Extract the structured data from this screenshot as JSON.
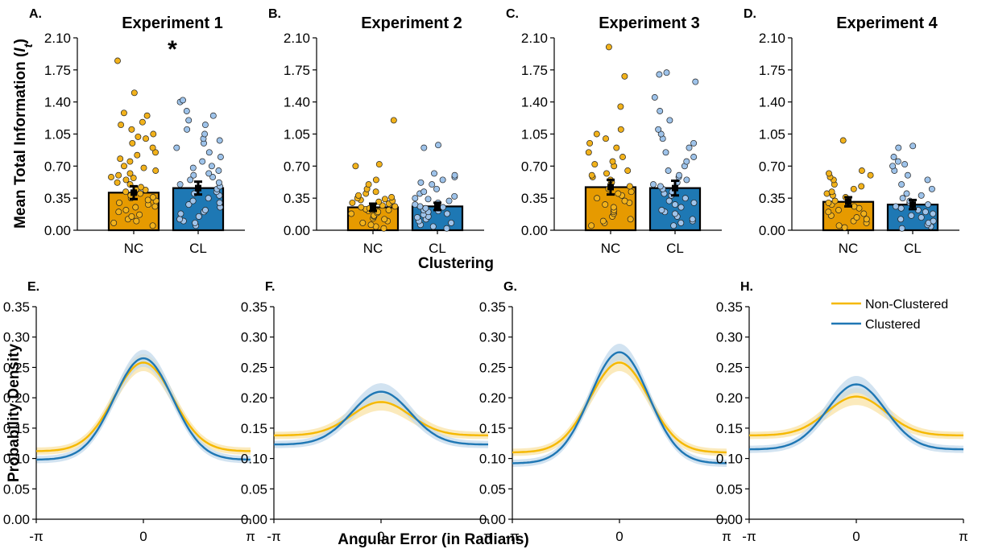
{
  "chart_data": [
    {
      "panel": "A.",
      "title": "Experiment 1",
      "type": "bar",
      "categories": [
        "NC",
        "CL"
      ],
      "values": [
        0.41,
        0.46
      ],
      "errors": [
        0.07,
        0.07
      ],
      "significance": "*",
      "ylim": [
        0,
        2.1
      ],
      "yticks": [
        "0.00",
        "0.35",
        "0.70",
        "1.05",
        "1.40",
        "1.75",
        "2.10"
      ],
      "points": {
        "NC": [
          0.05,
          0.08,
          0.1,
          0.12,
          0.15,
          0.17,
          0.2,
          0.22,
          0.25,
          0.26,
          0.28,
          0.3,
          0.32,
          0.33,
          0.35,
          0.36,
          0.38,
          0.4,
          0.42,
          0.44,
          0.45,
          0.47,
          0.5,
          0.52,
          0.55,
          0.57,
          0.58,
          0.6,
          0.62,
          0.65,
          0.68,
          0.7,
          0.75,
          0.78,
          0.82,
          0.85,
          0.9,
          0.95,
          1.0,
          1.02,
          1.05,
          1.1,
          1.15,
          1.18,
          1.25,
          1.28,
          1.5,
          1.85
        ],
        "CL": [
          0.05,
          0.08,
          0.1,
          0.12,
          0.15,
          0.18,
          0.2,
          0.22,
          0.25,
          0.28,
          0.3,
          0.32,
          0.35,
          0.38,
          0.4,
          0.42,
          0.45,
          0.48,
          0.5,
          0.52,
          0.55,
          0.58,
          0.6,
          0.62,
          0.65,
          0.68,
          0.7,
          0.75,
          0.8,
          0.85,
          0.9,
          0.95,
          0.98,
          1.0,
          1.05,
          1.1,
          1.15,
          1.2,
          1.25,
          1.3,
          1.4,
          1.42
        ]
      }
    },
    {
      "panel": "B.",
      "title": "Experiment 2",
      "type": "bar",
      "categories": [
        "NC",
        "CL"
      ],
      "values": [
        0.25,
        0.26
      ],
      "errors": [
        0.04,
        0.04
      ],
      "ylim": [
        0,
        2.1
      ],
      "yticks": [
        "0.00",
        "0.35",
        "0.70",
        "1.05",
        "1.40",
        "1.75",
        "2.10"
      ],
      "points": {
        "NC": [
          0.02,
          0.04,
          0.06,
          0.08,
          0.1,
          0.12,
          0.13,
          0.15,
          0.16,
          0.18,
          0.19,
          0.2,
          0.21,
          0.22,
          0.23,
          0.24,
          0.25,
          0.26,
          0.27,
          0.28,
          0.29,
          0.3,
          0.31,
          0.32,
          0.33,
          0.34,
          0.35,
          0.36,
          0.38,
          0.4,
          0.42,
          0.45,
          0.5,
          0.55,
          0.7,
          0.72,
          1.2
        ],
        "CL": [
          0.02,
          0.04,
          0.06,
          0.08,
          0.1,
          0.12,
          0.14,
          0.15,
          0.17,
          0.18,
          0.2,
          0.21,
          0.22,
          0.24,
          0.25,
          0.26,
          0.28,
          0.3,
          0.32,
          0.34,
          0.35,
          0.37,
          0.4,
          0.42,
          0.45,
          0.5,
          0.52,
          0.55,
          0.58,
          0.6,
          0.62,
          0.9,
          0.93
        ]
      }
    },
    {
      "panel": "C.",
      "title": "Experiment 3",
      "type": "bar",
      "categories": [
        "NC",
        "CL"
      ],
      "values": [
        0.47,
        0.46
      ],
      "errors": [
        0.08,
        0.08
      ],
      "ylim": [
        0,
        2.1
      ],
      "yticks": [
        "0.00",
        "0.35",
        "0.70",
        "1.05",
        "1.40",
        "1.75",
        "2.10"
      ],
      "points": {
        "NC": [
          0.05,
          0.08,
          0.1,
          0.12,
          0.15,
          0.18,
          0.2,
          0.22,
          0.25,
          0.28,
          0.3,
          0.32,
          0.35,
          0.38,
          0.4,
          0.42,
          0.45,
          0.48,
          0.5,
          0.52,
          0.55,
          0.58,
          0.6,
          0.62,
          0.65,
          0.7,
          0.72,
          0.75,
          0.8,
          0.85,
          0.9,
          0.95,
          1.0,
          1.05,
          1.1,
          1.35,
          1.68,
          2.0
        ],
        "CL": [
          0.05,
          0.08,
          0.1,
          0.12,
          0.15,
          0.18,
          0.2,
          0.22,
          0.25,
          0.28,
          0.3,
          0.32,
          0.35,
          0.38,
          0.4,
          0.42,
          0.45,
          0.48,
          0.5,
          0.52,
          0.55,
          0.58,
          0.6,
          0.65,
          0.7,
          0.75,
          0.8,
          0.85,
          0.9,
          0.95,
          1.0,
          1.05,
          1.1,
          1.2,
          1.3,
          1.45,
          1.62,
          1.7,
          1.72
        ]
      }
    },
    {
      "panel": "D.",
      "title": "Experiment 4",
      "type": "bar",
      "categories": [
        "NC",
        "CL"
      ],
      "values": [
        0.31,
        0.28
      ],
      "errors": [
        0.05,
        0.05
      ],
      "ylim": [
        0,
        2.1
      ],
      "yticks": [
        "0.00",
        "0.35",
        "0.70",
        "1.05",
        "1.40",
        "1.75",
        "2.10"
      ],
      "points": {
        "NC": [
          0.03,
          0.05,
          0.08,
          0.1,
          0.12,
          0.14,
          0.16,
          0.18,
          0.2,
          0.22,
          0.24,
          0.26,
          0.28,
          0.3,
          0.32,
          0.34,
          0.36,
          0.38,
          0.4,
          0.42,
          0.45,
          0.48,
          0.5,
          0.55,
          0.58,
          0.6,
          0.62,
          0.65,
          0.98
        ],
        "CL": [
          0.02,
          0.04,
          0.06,
          0.08,
          0.1,
          0.12,
          0.14,
          0.16,
          0.18,
          0.2,
          0.22,
          0.24,
          0.26,
          0.28,
          0.3,
          0.32,
          0.35,
          0.38,
          0.4,
          0.45,
          0.5,
          0.55,
          0.6,
          0.65,
          0.7,
          0.72,
          0.75,
          0.8,
          0.9,
          0.92
        ]
      }
    },
    {
      "panel": "E.",
      "type": "line",
      "xlim": [
        -3.14159,
        3.14159
      ],
      "ylim": [
        0,
        0.35
      ],
      "xticks": [
        "-π",
        "0",
        "π"
      ],
      "yticks": [
        "0.00",
        "0.05",
        "0.10",
        "0.15",
        "0.20",
        "0.25",
        "0.30",
        "0.35"
      ],
      "series": [
        {
          "name": "Non-Clustered",
          "base": 0.112,
          "peak": 0.258
        },
        {
          "name": "Clustered",
          "base": 0.098,
          "peak": 0.265
        }
      ]
    },
    {
      "panel": "F.",
      "type": "line",
      "xlim": [
        -3.14159,
        3.14159
      ],
      "ylim": [
        0,
        0.35
      ],
      "xticks": [
        "-π",
        "0",
        "π"
      ],
      "yticks": [
        "0.00",
        "0.05",
        "0.10",
        "0.15",
        "0.20",
        "0.25",
        "0.30",
        "0.35"
      ],
      "series": [
        {
          "name": "Non-Clustered",
          "base": 0.138,
          "peak": 0.193
        },
        {
          "name": "Clustered",
          "base": 0.123,
          "peak": 0.21
        }
      ]
    },
    {
      "panel": "G.",
      "type": "line",
      "xlim": [
        -3.14159,
        3.14159
      ],
      "ylim": [
        0,
        0.35
      ],
      "xticks": [
        "-π",
        "0",
        "π"
      ],
      "yticks": [
        "0.00",
        "0.05",
        "0.10",
        "0.15",
        "0.20",
        "0.25",
        "0.30",
        "0.35"
      ],
      "series": [
        {
          "name": "Non-Clustered",
          "base": 0.11,
          "peak": 0.258
        },
        {
          "name": "Clustered",
          "base": 0.092,
          "peak": 0.275
        }
      ]
    },
    {
      "panel": "H.",
      "type": "line",
      "xlim": [
        -3.14159,
        3.14159
      ],
      "ylim": [
        0,
        0.35
      ],
      "xticks": [
        "-π",
        "0",
        "π"
      ],
      "yticks": [
        "0.00",
        "0.05",
        "0.10",
        "0.15",
        "0.20",
        "0.25",
        "0.30",
        "0.35"
      ],
      "series": [
        {
          "name": "Non-Clustered",
          "base": 0.138,
          "peak": 0.202
        },
        {
          "name": "Clustered",
          "base": 0.115,
          "peak": 0.222
        }
      ]
    }
  ],
  "labels": {
    "top_ylabel": "Mean Total Information (",
    "top_ylabel_sym": "I",
    "top_ylabel_sub": "t",
    "top_ylabel_end": ")",
    "top_xlabel": "Clustering",
    "bottom_ylabel": "Probability Density",
    "bottom_xlabel": "Angular Error (in Radians)"
  },
  "legend": [
    "Non-Clustered",
    "Clustered"
  ],
  "colors": {
    "nc_bar": "#E69A00",
    "nc_point": "#F2B21B",
    "cl_bar": "#1E78B4",
    "cl_point": "#9EC3EA",
    "nc_line": "#F5B800",
    "cl_line": "#1F77B4",
    "nc_band": "#F9E3A6",
    "cl_band": "#C3D9EC"
  }
}
